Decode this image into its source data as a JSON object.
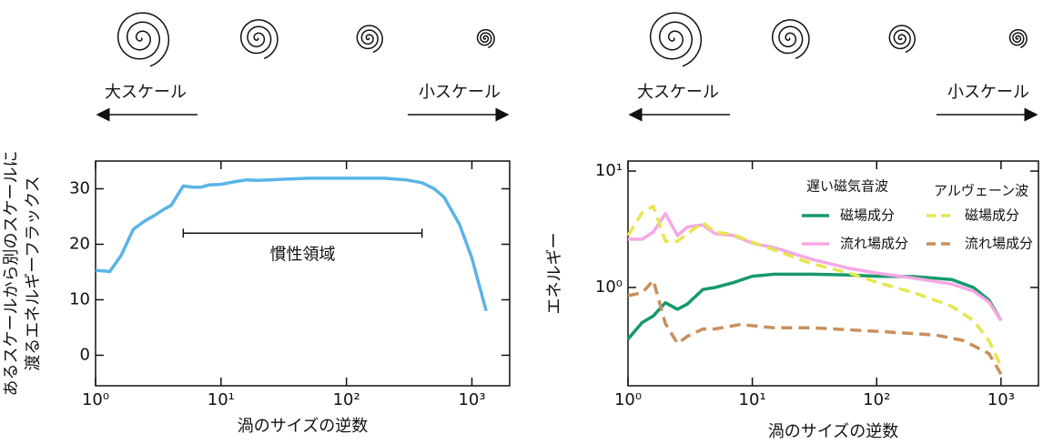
{
  "chart_data": [
    {
      "type": "line",
      "xlabel": "渦のサイズの逆数",
      "ylabel": [
        "あるスケールから別のスケールに",
        "渡るエネルギーフラックス"
      ],
      "scale_labels": [
        "大スケール",
        "小スケール"
      ],
      "xlog": true,
      "xlim": [
        1,
        2000
      ],
      "xticks": [
        {
          "value": 1,
          "label": "10⁰"
        },
        {
          "value": 10,
          "label": "10¹"
        },
        {
          "value": 100,
          "label": "10²"
        },
        {
          "value": 1000,
          "label": "10³"
        }
      ],
      "ylim": [
        -5.5,
        35
      ],
      "yticks": [
        0,
        10,
        20,
        30
      ],
      "color": "#5ab4e6",
      "x": [
        1,
        1.3,
        1.6,
        2,
        2.5,
        3,
        3.5,
        4,
        5,
        6,
        7,
        8,
        10,
        13,
        16,
        20,
        30,
        50,
        100,
        200,
        300,
        400,
        500,
        600,
        800,
        1000,
        1300
      ],
      "values": [
        15.3,
        15.1,
        18,
        22.7,
        24.3,
        25.3,
        26.3,
        27,
        30.5,
        30.3,
        30.3,
        30.7,
        30.8,
        31.3,
        31.6,
        31.5,
        31.7,
        31.9,
        31.9,
        31.9,
        31.6,
        31.1,
        30,
        28.5,
        23.5,
        17.5,
        8
      ],
      "annotations": [
        {
          "text": "慣性領域",
          "x": [
            5,
            400
          ],
          "y": 22
        }
      ]
    },
    {
      "type": "line",
      "xlabel": "渦のサイズの逆数",
      "ylabel": [
        "エネルギー"
      ],
      "scale_labels": [
        "大スケール",
        "小スケール"
      ],
      "xlog": true,
      "xlim": [
        1,
        2000
      ],
      "xticks": [
        {
          "value": 1,
          "label": "10⁰"
        },
        {
          "value": 10,
          "label": "10¹"
        },
        {
          "value": 100,
          "label": "10²"
        },
        {
          "value": 1000,
          "label": "10³"
        }
      ],
      "ylog": true,
      "ylim": [
        0.143,
        12.2
      ],
      "yticks": [
        {
          "value": 1,
          "label": "10⁰"
        },
        {
          "value": 10,
          "label": "10¹"
        }
      ],
      "legend_groups": [
        "遅い磁気音波",
        "アルヴェーン波"
      ],
      "series": [
        {
          "name": "磁場成分",
          "group": 0,
          "dash": false,
          "color": "#16996b",
          "x": [
            1,
            1.3,
            1.6,
            2,
            2.5,
            3,
            4,
            5,
            7,
            10,
            15,
            30,
            60,
            100,
            200,
            400,
            600,
            800,
            1000
          ],
          "values": [
            0.36,
            0.5,
            0.57,
            0.74,
            0.65,
            0.72,
            0.96,
            1.0,
            1.1,
            1.25,
            1.3,
            1.3,
            1.28,
            1.25,
            1.24,
            1.17,
            1.0,
            0.78,
            0.52
          ]
        },
        {
          "name": "流れ場成分",
          "group": 0,
          "dash": false,
          "color": "#f5a8e4",
          "x": [
            1,
            1.3,
            1.6,
            2,
            2.5,
            3,
            3.5,
            4,
            5,
            7,
            10,
            15,
            30,
            60,
            100,
            200,
            400,
            600,
            800,
            1000
          ],
          "values": [
            2.6,
            2.6,
            3.0,
            4.3,
            2.8,
            3.3,
            3.4,
            3.45,
            2.9,
            2.8,
            2.4,
            2.2,
            1.75,
            1.46,
            1.33,
            1.2,
            1.07,
            0.93,
            0.75,
            0.52
          ]
        },
        {
          "name": "磁場成分",
          "group": 1,
          "dash": true,
          "color": "#e6e64c",
          "x": [
            1,
            1.3,
            1.6,
            2,
            2.5,
            3,
            4,
            5,
            7,
            10,
            15,
            30,
            60,
            100,
            200,
            400,
            600,
            800,
            1000
          ],
          "values": [
            2.8,
            4.4,
            5.0,
            2.5,
            2.5,
            2.9,
            3.6,
            3.0,
            2.85,
            2.45,
            2.1,
            1.6,
            1.33,
            1.11,
            0.9,
            0.69,
            0.52,
            0.35,
            0.21
          ]
        },
        {
          "name": "流れ場成分",
          "group": 1,
          "dash": true,
          "color": "#c98f5c",
          "x": [
            1,
            1.3,
            1.6,
            2,
            2.5,
            3,
            4,
            5,
            8,
            15,
            30,
            100,
            300,
            500,
            800,
            1000
          ],
          "values": [
            0.85,
            0.9,
            1.15,
            0.49,
            0.33,
            0.38,
            0.44,
            0.44,
            0.48,
            0.45,
            0.45,
            0.42,
            0.39,
            0.35,
            0.27,
            0.18
          ]
        }
      ]
    }
  ]
}
